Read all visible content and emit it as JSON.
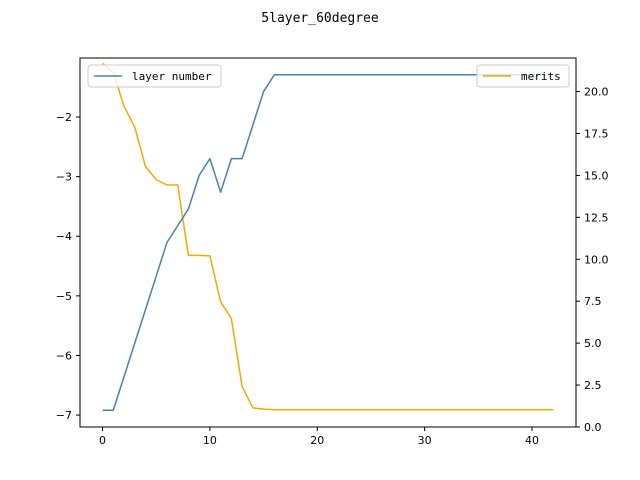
{
  "chart_data": {
    "type": "line",
    "title": "5layer_60degree",
    "xlabel": "",
    "ylabel_left": "",
    "ylabel_right": "",
    "x_ticks": [
      0,
      10,
      20,
      30,
      40
    ],
    "x_tick_labels": [
      "0",
      "10",
      "20",
      "30",
      "40"
    ],
    "xlim": [
      -2.1,
      44.1
    ],
    "y_left_ticks": [
      -7,
      -6,
      -5,
      -4,
      -3,
      -2
    ],
    "y_left_tick_labels": [
      "−7",
      "−6",
      "−5",
      "−4",
      "−3",
      "−2"
    ],
    "y_left_lim": [
      -7.2,
      -1.01
    ],
    "y_right_ticks": [
      0.0,
      2.5,
      5.0,
      7.5,
      10.0,
      12.5,
      15.0,
      17.5,
      20.0
    ],
    "y_right_tick_labels": [
      "0.0",
      "2.5",
      "5.0",
      "7.5",
      "10.0",
      "12.5",
      "15.0",
      "17.5",
      "20.0"
    ],
    "y_right_lim": [
      0.0,
      22.0
    ],
    "grid": false,
    "legend": [
      {
        "name": "layer number",
        "placement": "top-left",
        "color": "#4682b4"
      },
      {
        "name": "merits",
        "placement": "top-right",
        "color": "#ffa500"
      }
    ],
    "series": [
      {
        "name": "layer number",
        "axis": "right",
        "color": "#4682b4",
        "x": [
          0,
          1,
          2,
          3,
          4,
          5,
          6,
          7,
          8,
          9,
          10,
          11,
          12,
          13,
          14,
          15,
          16,
          17,
          18,
          19,
          20,
          21,
          22,
          23,
          24,
          25,
          26,
          27,
          28,
          29,
          30,
          31,
          32,
          33,
          34,
          35,
          36,
          37,
          38,
          39,
          40,
          41,
          42
        ],
        "values": [
          1,
          1,
          3,
          5,
          7,
          9,
          11,
          12,
          13,
          15,
          16,
          14,
          16,
          16,
          18,
          20,
          21,
          21,
          21,
          21,
          21,
          21,
          21,
          21,
          21,
          21,
          21,
          21,
          21,
          21,
          21,
          21,
          21,
          21,
          21,
          21,
          21,
          21,
          21,
          21,
          21,
          21,
          21
        ]
      },
      {
        "name": "merits",
        "axis": "left",
        "color": "#ffa500",
        "x": [
          0,
          1,
          2,
          3,
          4,
          5,
          6,
          7,
          8,
          9,
          10,
          11,
          12,
          13,
          14,
          15,
          16,
          17,
          18,
          19,
          20,
          21,
          22,
          23,
          24,
          25,
          26,
          27,
          28,
          29,
          30,
          31,
          32,
          33,
          34,
          35,
          36,
          37,
          38,
          39,
          40,
          41,
          42
        ],
        "values": [
          -1.1,
          -1.25,
          -1.82,
          -2.17,
          -2.83,
          -3.05,
          -3.14,
          -3.14,
          -4.32,
          -4.32,
          -4.33,
          -5.1,
          -5.38,
          -6.52,
          -6.88,
          -6.9,
          -6.91,
          -6.91,
          -6.91,
          -6.91,
          -6.91,
          -6.91,
          -6.91,
          -6.91,
          -6.91,
          -6.91,
          -6.91,
          -6.91,
          -6.91,
          -6.91,
          -6.91,
          -6.91,
          -6.91,
          -6.91,
          -6.91,
          -6.91,
          -6.91,
          -6.91,
          -6.91,
          -6.91,
          -6.91,
          -6.91,
          -6.91
        ]
      }
    ]
  }
}
